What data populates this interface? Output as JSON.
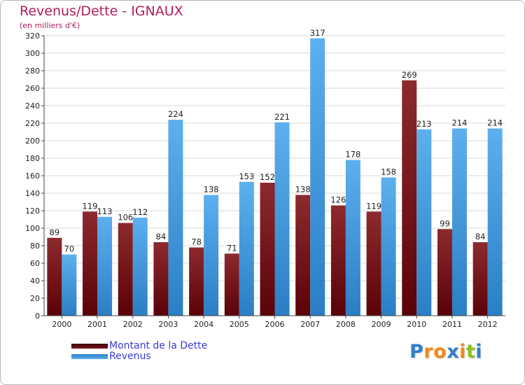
{
  "header": {
    "title": "Revenus/Dette - IGNAUX",
    "subtitle": "(en milliers d'€)"
  },
  "legend": {
    "items": [
      {
        "label": "Montant de la Dette",
        "color": "#6b0f14"
      },
      {
        "label": "Revenus",
        "color": "#3d9de0"
      }
    ]
  },
  "logo": {
    "letters": [
      "P",
      "r",
      "o",
      "x",
      "i",
      "t",
      "i"
    ],
    "colors": [
      "#2e7fd0",
      "#f08a1a",
      "#f08a1a",
      "#2e7fd0",
      "#f08a1a",
      "#8fbf1f",
      "#2e7fd0"
    ]
  },
  "chart_data": {
    "type": "bar",
    "title": "Revenus/Dette - IGNAUX",
    "subtitle": "(en milliers d'€)",
    "categories": [
      "2000",
      "2001",
      "2002",
      "2003",
      "2004",
      "2005",
      "2006",
      "2007",
      "2008",
      "2009",
      "2010",
      "2011",
      "2012"
    ],
    "series": [
      {
        "name": "Montant de la Dette",
        "color": "#7a1a1e",
        "values": [
          89,
          119,
          106,
          84,
          78,
          71,
          152,
          138,
          126,
          119,
          269,
          99,
          84
        ]
      },
      {
        "name": "Revenus",
        "color": "#4aa3e6",
        "values": [
          70,
          113,
          112,
          224,
          138,
          153,
          221,
          317,
          178,
          158,
          213,
          214,
          214
        ]
      }
    ],
    "ylim": [
      0,
      320
    ],
    "yticks": [
      0,
      20,
      40,
      60,
      80,
      100,
      120,
      140,
      160,
      180,
      200,
      220,
      240,
      260,
      280,
      300,
      320
    ],
    "grid": true,
    "legend_position": "bottom-left"
  }
}
